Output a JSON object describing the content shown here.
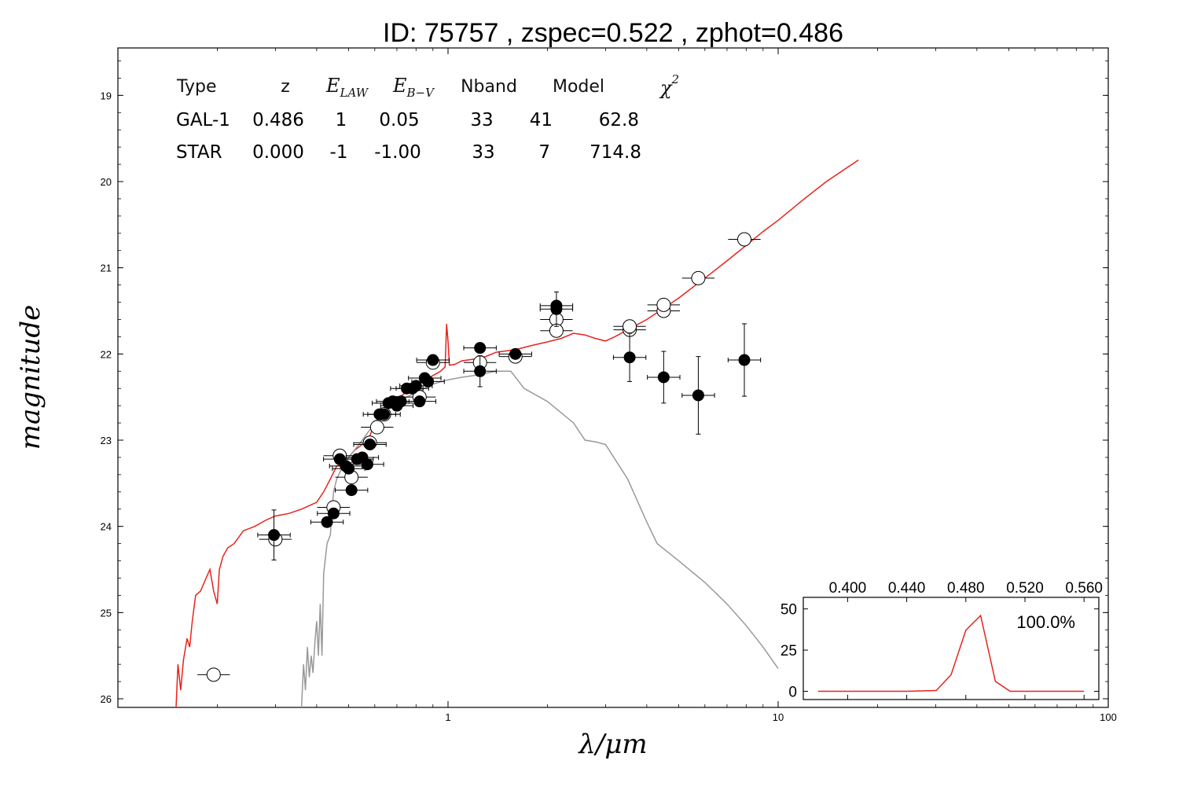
{
  "chart_data": {
    "type": "scatter",
    "title": "ID:  75757 , zspec=0.522 , zphot=0.486",
    "xlabel": "λ/μm",
    "ylabel": "magnitude",
    "x_scale": "log",
    "xlim": [
      0.1,
      100
    ],
    "ylim": [
      26.1,
      18.45
    ],
    "y_inverted": true,
    "x_ticks": [
      "1",
      "10",
      "100"
    ],
    "y_ticks": [
      "19",
      "20",
      "21",
      "22",
      "23",
      "24",
      "25",
      "26"
    ],
    "fit_table": {
      "headers": {
        "type": "Type",
        "z": "z",
        "elaw_main": "E",
        "elaw_sub": "LAW",
        "ebv_main": "E",
        "ebv_sub": "B−V",
        "nband": "Nband",
        "model": "Model",
        "chi_main": "χ",
        "chi_sup": "2"
      },
      "rows": [
        {
          "type": "GAL-1",
          "z": "0.486",
          "elaw": "1",
          "ebv": "0.05",
          "nband": "33",
          "model": "41",
          "chi2": "62.8",
          "color": "#e8231c"
        },
        {
          "type": "STAR",
          "z": "0.000",
          "elaw": "-1",
          "ebv": "-1.00",
          "nband": "33",
          "model": "7",
          "chi2": "714.8",
          "color": "#999999"
        }
      ]
    },
    "series": [
      {
        "name": "GAL-1",
        "kind": "line",
        "color": "#e8231c",
        "points": [
          [
            0.15,
            26.1
          ],
          [
            0.152,
            25.6
          ],
          [
            0.155,
            25.9
          ],
          [
            0.158,
            25.55
          ],
          [
            0.162,
            25.3
          ],
          [
            0.165,
            25.4
          ],
          [
            0.168,
            25.1
          ],
          [
            0.172,
            24.8
          ],
          [
            0.178,
            24.75
          ],
          [
            0.185,
            24.6
          ],
          [
            0.19,
            24.5
          ],
          [
            0.195,
            24.75
          ],
          [
            0.2,
            24.9
          ],
          [
            0.203,
            24.5
          ],
          [
            0.208,
            24.35
          ],
          [
            0.215,
            24.25
          ],
          [
            0.225,
            24.2
          ],
          [
            0.24,
            24.05
          ],
          [
            0.26,
            24.0
          ],
          [
            0.28,
            23.93
          ],
          [
            0.3,
            23.88
          ],
          [
            0.33,
            23.85
          ],
          [
            0.36,
            23.8
          ],
          [
            0.4,
            23.72
          ],
          [
            0.42,
            23.6
          ],
          [
            0.44,
            23.45
          ],
          [
            0.46,
            23.3
          ],
          [
            0.48,
            23.28
          ],
          [
            0.5,
            23.2
          ],
          [
            0.52,
            23.12
          ],
          [
            0.55,
            23.05
          ],
          [
            0.58,
            22.95
          ],
          [
            0.6,
            22.8
          ],
          [
            0.63,
            22.68
          ],
          [
            0.66,
            22.6
          ],
          [
            0.7,
            22.52
          ],
          [
            0.75,
            22.44
          ],
          [
            0.8,
            22.36
          ],
          [
            0.85,
            22.3
          ],
          [
            0.9,
            22.25
          ],
          [
            0.95,
            22.2
          ],
          [
            0.98,
            22.15
          ],
          [
            0.99,
            21.65
          ],
          [
            1.0,
            21.85
          ],
          [
            1.01,
            22.13
          ],
          [
            1.05,
            22.12
          ],
          [
            1.1,
            22.08
          ],
          [
            1.2,
            22.06
          ],
          [
            1.3,
            22.03
          ],
          [
            1.4,
            21.98
          ],
          [
            1.6,
            21.95
          ],
          [
            1.8,
            21.9
          ],
          [
            2.0,
            21.86
          ],
          [
            2.2,
            21.82
          ],
          [
            2.4,
            21.76
          ],
          [
            2.6,
            21.78
          ],
          [
            2.8,
            21.82
          ],
          [
            3.0,
            21.85
          ],
          [
            3.2,
            21.8
          ],
          [
            3.5,
            21.72
          ],
          [
            4.0,
            21.6
          ],
          [
            4.5,
            21.47
          ],
          [
            5.0,
            21.35
          ],
          [
            6.0,
            21.12
          ],
          [
            7.0,
            20.92
          ],
          [
            8.0,
            20.74
          ],
          [
            9.0,
            20.58
          ],
          [
            10.0,
            20.45
          ],
          [
            12.0,
            20.2
          ],
          [
            14.0,
            20.0
          ],
          [
            17.5,
            19.75
          ]
        ]
      },
      {
        "name": "STAR",
        "kind": "line",
        "color": "#999999",
        "points": [
          [
            0.36,
            26.1
          ],
          [
            0.365,
            25.6
          ],
          [
            0.37,
            25.9
          ],
          [
            0.375,
            25.4
          ],
          [
            0.38,
            25.75
          ],
          [
            0.385,
            25.5
          ],
          [
            0.39,
            25.7
          ],
          [
            0.395,
            25.35
          ],
          [
            0.4,
            25.1
          ],
          [
            0.405,
            25.5
          ],
          [
            0.41,
            24.9
          ],
          [
            0.415,
            25.5
          ],
          [
            0.42,
            24.55
          ],
          [
            0.43,
            24.2
          ],
          [
            0.44,
            24.1
          ],
          [
            0.45,
            23.6
          ],
          [
            0.46,
            23.45
          ],
          [
            0.48,
            23.3
          ],
          [
            0.5,
            23.2
          ],
          [
            0.55,
            23.0
          ],
          [
            0.6,
            22.8
          ],
          [
            0.65,
            22.65
          ],
          [
            0.7,
            22.55
          ],
          [
            0.8,
            22.45
          ],
          [
            0.9,
            22.35
          ],
          [
            1.0,
            22.3
          ],
          [
            1.1,
            22.27
          ],
          [
            1.2,
            22.25
          ],
          [
            1.4,
            22.2
          ],
          [
            1.55,
            22.2
          ],
          [
            1.7,
            22.4
          ],
          [
            2.0,
            22.55
          ],
          [
            2.4,
            22.8
          ],
          [
            2.6,
            23.0
          ],
          [
            2.8,
            23.02
          ],
          [
            3.0,
            23.05
          ],
          [
            3.5,
            23.45
          ],
          [
            4.0,
            23.95
          ],
          [
            4.3,
            24.2
          ],
          [
            5.0,
            24.4
          ],
          [
            6.0,
            24.65
          ],
          [
            7.0,
            24.9
          ],
          [
            8.0,
            25.15
          ],
          [
            9.0,
            25.4
          ],
          [
            10.0,
            25.65
          ]
        ]
      },
      {
        "name": "observed",
        "kind": "points-filled",
        "color": "#000000",
        "points": [
          [
            0.297,
            24.1,
            0.29
          ],
          [
            0.43,
            23.95,
            0
          ],
          [
            0.45,
            23.85,
            0
          ],
          [
            0.47,
            23.22,
            0
          ],
          [
            0.49,
            23.3,
            0
          ],
          [
            0.5,
            23.33,
            0
          ],
          [
            0.51,
            23.58,
            0
          ],
          [
            0.53,
            23.22,
            0
          ],
          [
            0.55,
            23.2,
            0
          ],
          [
            0.57,
            23.28,
            0
          ],
          [
            0.58,
            23.05,
            0
          ],
          [
            0.62,
            22.7,
            0
          ],
          [
            0.64,
            22.7,
            0
          ],
          [
            0.66,
            22.57,
            0
          ],
          [
            0.68,
            22.55,
            0
          ],
          [
            0.7,
            22.6,
            0
          ],
          [
            0.72,
            22.55,
            0
          ],
          [
            0.75,
            22.4,
            0
          ],
          [
            0.78,
            22.4,
            0
          ],
          [
            0.8,
            22.37,
            0
          ],
          [
            0.82,
            22.55,
            0
          ],
          [
            0.85,
            22.28,
            0
          ],
          [
            0.87,
            22.32,
            0
          ],
          [
            0.9,
            22.07,
            0
          ],
          [
            1.25,
            21.93,
            0
          ],
          [
            1.25,
            22.2,
            0.18
          ],
          [
            1.6,
            22.0,
            0
          ],
          [
            2.13,
            21.48,
            0.2
          ],
          [
            2.13,
            21.44,
            0
          ],
          [
            3.55,
            22.04,
            0.28
          ],
          [
            4.5,
            22.27,
            0.3
          ],
          [
            5.73,
            22.48,
            0.45
          ],
          [
            7.9,
            22.07,
            0.42
          ]
        ]
      },
      {
        "name": "model-predicted",
        "kind": "points-open",
        "color": "#000000",
        "points": [
          [
            0.195,
            25.72
          ],
          [
            0.3,
            24.15
          ],
          [
            0.45,
            23.78
          ],
          [
            0.47,
            23.18
          ],
          [
            0.51,
            23.43
          ],
          [
            0.58,
            23.03
          ],
          [
            0.61,
            22.85
          ],
          [
            0.64,
            22.7
          ],
          [
            0.7,
            22.57
          ],
          [
            0.82,
            22.5
          ],
          [
            0.9,
            22.1
          ],
          [
            1.25,
            22.1
          ],
          [
            1.6,
            22.03
          ],
          [
            2.13,
            21.6
          ],
          [
            2.13,
            21.73
          ],
          [
            3.55,
            21.72
          ],
          [
            3.55,
            21.68
          ],
          [
            4.5,
            21.5
          ],
          [
            4.5,
            21.43
          ],
          [
            5.73,
            21.12
          ],
          [
            7.9,
            20.67
          ]
        ]
      }
    ],
    "inset": {
      "type": "line",
      "label": "100.0%",
      "xlim": [
        0.37,
        0.57
      ],
      "ylim": [
        -5,
        57
      ],
      "x_ticks": [
        "0.400",
        "0.440",
        "0.480",
        "0.520",
        "0.560"
      ],
      "y_ticks": [
        "0",
        "25",
        "50"
      ],
      "color": "#e8231c",
      "points": [
        [
          0.38,
          0
        ],
        [
          0.4,
          0
        ],
        [
          0.42,
          0
        ],
        [
          0.44,
          0
        ],
        [
          0.46,
          0.5
        ],
        [
          0.47,
          10
        ],
        [
          0.48,
          37
        ],
        [
          0.49,
          46
        ],
        [
          0.5,
          6
        ],
        [
          0.51,
          0
        ],
        [
          0.52,
          0
        ],
        [
          0.54,
          0
        ],
        [
          0.56,
          0
        ]
      ]
    }
  }
}
